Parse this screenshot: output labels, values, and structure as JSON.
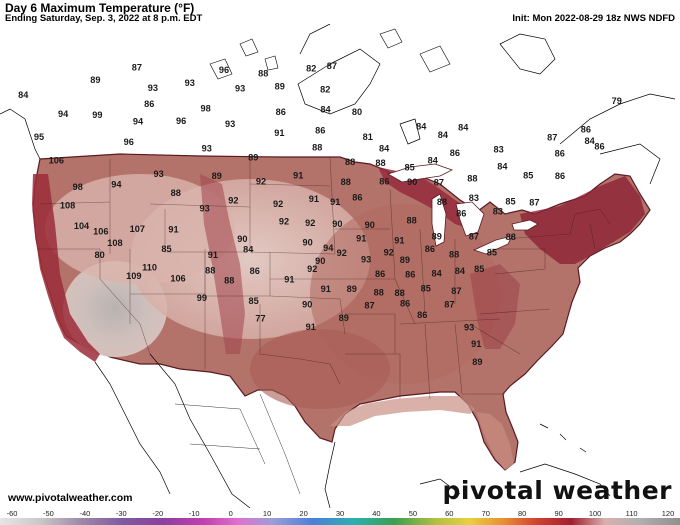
{
  "header": {
    "title": "Day 6 Maximum Temperature (°F)",
    "subtitle": "Ending Saturday, Sep. 3, 2022 at 8 p.m. EDT",
    "init": "Init: Mon 2022-08-29 18z NWS NDFD"
  },
  "footer": {
    "website": "www.pivotalweather.com",
    "brand": "pivotal weather"
  },
  "colorbar": {
    "ticks": [
      "-60",
      "-50",
      "-40",
      "-30",
      "-20",
      "-10",
      "0",
      "10",
      "20",
      "30",
      "40",
      "50",
      "60",
      "70",
      "80",
      "90",
      "100",
      "110",
      "120"
    ]
  },
  "temps": [
    {
      "v": "87",
      "lon": -113.2,
      "lat": 48.3
    },
    {
      "v": "89",
      "lon": -117.0,
      "lat": 47.2
    },
    {
      "v": "93",
      "lon": -112.0,
      "lat": 46.8
    },
    {
      "v": "96",
      "lon": -105.6,
      "lat": 48.4
    },
    {
      "v": "88",
      "lon": -102.2,
      "lat": 48.2
    },
    {
      "v": "82",
      "lon": -98.0,
      "lat": 48.6
    },
    {
      "v": "87",
      "lon": -96.2,
      "lat": 48.8
    },
    {
      "v": "93",
      "lon": -108.7,
      "lat": 47.3
    },
    {
      "v": "93",
      "lon": -104.3,
      "lat": 47.0
    },
    {
      "v": "89",
      "lon": -100.8,
      "lat": 47.2
    },
    {
      "v": "82",
      "lon": -96.8,
      "lat": 47.0
    },
    {
      "v": "86",
      "lon": -112.5,
      "lat": 45.6
    },
    {
      "v": "98",
      "lon": -107.5,
      "lat": 45.4
    },
    {
      "v": "86",
      "lon": -100.8,
      "lat": 45.3
    },
    {
      "v": "84",
      "lon": -96.8,
      "lat": 45.5
    },
    {
      "v": "80",
      "lon": -94.0,
      "lat": 45.3
    },
    {
      "v": "84",
      "lon": -123.7,
      "lat": 45.6
    },
    {
      "v": "94",
      "lon": -120.4,
      "lat": 44.4
    },
    {
      "v": "99",
      "lon": -117.3,
      "lat": 44.5
    },
    {
      "v": "94",
      "lon": -113.7,
      "lat": 44.2
    },
    {
      "v": "96",
      "lon": -109.8,
      "lat": 44.4
    },
    {
      "v": "93",
      "lon": -105.4,
      "lat": 44.3
    },
    {
      "v": "91",
      "lon": -101.0,
      "lat": 43.7
    },
    {
      "v": "86",
      "lon": -97.3,
      "lat": 43.9
    },
    {
      "v": "81",
      "lon": -93.0,
      "lat": 43.4
    },
    {
      "v": "84",
      "lon": -88.2,
      "lat": 44.1
    },
    {
      "v": "84",
      "lon": -86.2,
      "lat": 43.4
    },
    {
      "v": "84",
      "lon": -84.4,
      "lat": 43.9
    },
    {
      "v": "79",
      "lon": -70.8,
      "lat": 45.2
    },
    {
      "v": "95",
      "lon": -123.0,
      "lat": 42.5
    },
    {
      "v": "96",
      "lon": -114.8,
      "lat": 42.6
    },
    {
      "v": "93",
      "lon": -107.7,
      "lat": 42.4
    },
    {
      "v": "89",
      "lon": -103.5,
      "lat": 41.8
    },
    {
      "v": "88",
      "lon": -97.6,
      "lat": 42.6
    },
    {
      "v": "84",
      "lon": -91.5,
      "lat": 42.5
    },
    {
      "v": "86",
      "lon": -85.0,
      "lat": 42.0
    },
    {
      "v": "83",
      "lon": -81.0,
      "lat": 42.1
    },
    {
      "v": "87",
      "lon": -76.2,
      "lat": 42.8
    },
    {
      "v": "86",
      "lon": -73.2,
      "lat": 43.2
    },
    {
      "v": "84",
      "lon": -72.7,
      "lat": 42.3
    },
    {
      "v": "88",
      "lon": -94.6,
      "lat": 41.5
    },
    {
      "v": "88",
      "lon": -91.8,
      "lat": 41.4
    },
    {
      "v": "85",
      "lon": -89.1,
      "lat": 41.0
    },
    {
      "v": "84",
      "lon": -87.0,
      "lat": 41.5
    },
    {
      "v": "84",
      "lon": -80.5,
      "lat": 40.8
    },
    {
      "v": "86",
      "lon": -75.3,
      "lat": 41.5
    },
    {
      "v": "86",
      "lon": -71.7,
      "lat": 41.8
    },
    {
      "v": "106",
      "lon": -121.8,
      "lat": 40.8
    },
    {
      "v": "93",
      "lon": -112.4,
      "lat": 40.3
    },
    {
      "v": "89",
      "lon": -107.0,
      "lat": 40.3
    },
    {
      "v": "92",
      "lon": -102.9,
      "lat": 40.0
    },
    {
      "v": "91",
      "lon": -99.4,
      "lat": 40.5
    },
    {
      "v": "88",
      "lon": -95.0,
      "lat": 40.0
    },
    {
      "v": "86",
      "lon": -91.4,
      "lat": 40.0
    },
    {
      "v": "90",
      "lon": -88.8,
      "lat": 39.9
    },
    {
      "v": "87",
      "lon": -86.3,
      "lat": 39.8
    },
    {
      "v": "88",
      "lon": -83.2,
      "lat": 40.0
    },
    {
      "v": "85",
      "lon": -78.0,
      "lat": 40.0
    },
    {
      "v": "86",
      "lon": -75.0,
      "lat": 39.8
    },
    {
      "v": "98",
      "lon": -120.2,
      "lat": 38.9
    },
    {
      "v": "94",
      "lon": -116.5,
      "lat": 39.3
    },
    {
      "v": "88",
      "lon": -111.0,
      "lat": 38.9
    },
    {
      "v": "92",
      "lon": -105.6,
      "lat": 38.5
    },
    {
      "v": "92",
      "lon": -101.4,
      "lat": 38.3
    },
    {
      "v": "91",
      "lon": -98.0,
      "lat": 38.7
    },
    {
      "v": "91",
      "lon": -96.0,
      "lat": 38.5
    },
    {
      "v": "86",
      "lon": -93.9,
      "lat": 38.8
    },
    {
      "v": "88",
      "lon": -85.9,
      "lat": 38.3
    },
    {
      "v": "83",
      "lon": -82.9,
      "lat": 38.5
    },
    {
      "v": "85",
      "lon": -79.4,
      "lat": 38.1
    },
    {
      "v": "87",
      "lon": -77.1,
      "lat": 37.9
    },
    {
      "v": "108",
      "lon": -121.5,
      "lat": 37.4
    },
    {
      "v": "93",
      "lon": -108.4,
      "lat": 37.8
    },
    {
      "v": "92",
      "lon": -100.9,
      "lat": 37.0
    },
    {
      "v": "92",
      "lon": -98.4,
      "lat": 36.9
    },
    {
      "v": "90",
      "lon": -95.8,
      "lat": 36.8
    },
    {
      "v": "90",
      "lon": -92.7,
      "lat": 36.7
    },
    {
      "v": "88",
      "lon": -88.7,
      "lat": 37.0
    },
    {
      "v": "86",
      "lon": -84.0,
      "lat": 37.4
    },
    {
      "v": "83",
      "lon": -80.5,
      "lat": 37.4
    },
    {
      "v": "104",
      "lon": -120.5,
      "lat": 35.9
    },
    {
      "v": "106",
      "lon": -118.7,
      "lat": 35.6
    },
    {
      "v": "107",
      "lon": -115.1,
      "lat": 36.0
    },
    {
      "v": "91",
      "lon": -111.6,
      "lat": 36.1
    },
    {
      "v": "90",
      "lon": -105.0,
      "lat": 35.6
    },
    {
      "v": "90",
      "lon": -98.7,
      "lat": 35.4
    },
    {
      "v": "94",
      "lon": -96.7,
      "lat": 35.0
    },
    {
      "v": "91",
      "lon": -93.5,
      "lat": 35.7
    },
    {
      "v": "91",
      "lon": -89.8,
      "lat": 35.5
    },
    {
      "v": "89",
      "lon": -86.2,
      "lat": 35.7
    },
    {
      "v": "87",
      "lon": -82.6,
      "lat": 35.6
    },
    {
      "v": "88",
      "lon": -79.0,
      "lat": 35.4
    },
    {
      "v": "108",
      "lon": -117.5,
      "lat": 34.8
    },
    {
      "v": "85",
      "lon": -112.5,
      "lat": 34.6
    },
    {
      "v": "91",
      "lon": -108.0,
      "lat": 34.3
    },
    {
      "v": "84",
      "lon": -104.5,
      "lat": 34.8
    },
    {
      "v": "90",
      "lon": -97.5,
      "lat": 34.0
    },
    {
      "v": "92",
      "lon": -95.4,
      "lat": 34.6
    },
    {
      "v": "93",
      "lon": -93.0,
      "lat": 34.1
    },
    {
      "v": "92",
      "lon": -90.8,
      "lat": 34.6
    },
    {
      "v": "89",
      "lon": -89.2,
      "lat": 34.0
    },
    {
      "v": "86",
      "lon": -86.8,
      "lat": 34.8
    },
    {
      "v": "88",
      "lon": -84.4,
      "lat": 34.3
    },
    {
      "v": "85",
      "lon": -80.7,
      "lat": 34.3
    },
    {
      "v": "80",
      "lon": -119.2,
      "lat": 33.8
    },
    {
      "v": "110",
      "lon": -114.4,
      "lat": 33.1
    },
    {
      "v": "88",
      "lon": -108.4,
      "lat": 33.1
    },
    {
      "v": "86",
      "lon": -104.0,
      "lat": 33.2
    },
    {
      "v": "91",
      "lon": -100.6,
      "lat": 32.6
    },
    {
      "v": "92",
      "lon": -98.3,
      "lat": 33.4
    },
    {
      "v": "86",
      "lon": -91.6,
      "lat": 33.0
    },
    {
      "v": "86",
      "lon": -88.6,
      "lat": 32.9
    },
    {
      "v": "84",
      "lon": -86.0,
      "lat": 32.9
    },
    {
      "v": "84",
      "lon": -83.7,
      "lat": 33.0
    },
    {
      "v": "85",
      "lon": -81.8,
      "lat": 33.1
    },
    {
      "v": "109",
      "lon": -116.1,
      "lat": 32.4
    },
    {
      "v": "106",
      "lon": -111.7,
      "lat": 32.4
    },
    {
      "v": "88",
      "lon": -106.6,
      "lat": 32.4
    },
    {
      "v": "91",
      "lon": -97.0,
      "lat": 31.9
    },
    {
      "v": "89",
      "lon": -94.4,
      "lat": 31.9
    },
    {
      "v": "88",
      "lon": -91.7,
      "lat": 31.6
    },
    {
      "v": "88",
      "lon": -89.6,
      "lat": 31.5
    },
    {
      "v": "85",
      "lon": -87.0,
      "lat": 31.8
    },
    {
      "v": "87",
      "lon": -83.9,
      "lat": 31.5
    },
    {
      "v": "99",
      "lon": -109.5,
      "lat": 31.0
    },
    {
      "v": "85",
      "lon": -104.3,
      "lat": 30.9
    },
    {
      "v": "90",
      "lon": -98.9,
      "lat": 30.7
    },
    {
      "v": "87",
      "lon": -92.6,
      "lat": 30.6
    },
    {
      "v": "86",
      "lon": -89.0,
      "lat": 30.7
    },
    {
      "v": "87",
      "lon": -84.5,
      "lat": 30.5
    },
    {
      "v": "77",
      "lon": -103.7,
      "lat": 29.6
    },
    {
      "v": "91",
      "lon": -98.6,
      "lat": 29.0
    },
    {
      "v": "89",
      "lon": -95.2,
      "lat": 29.7
    },
    {
      "v": "86",
      "lon": -87.2,
      "lat": 29.8
    },
    {
      "v": "93",
      "lon": -82.3,
      "lat": 28.7
    },
    {
      "v": "91",
      "lon": -81.4,
      "lat": 27.4
    },
    {
      "v": "89",
      "lon": -81.1,
      "lat": 26.0
    }
  ]
}
